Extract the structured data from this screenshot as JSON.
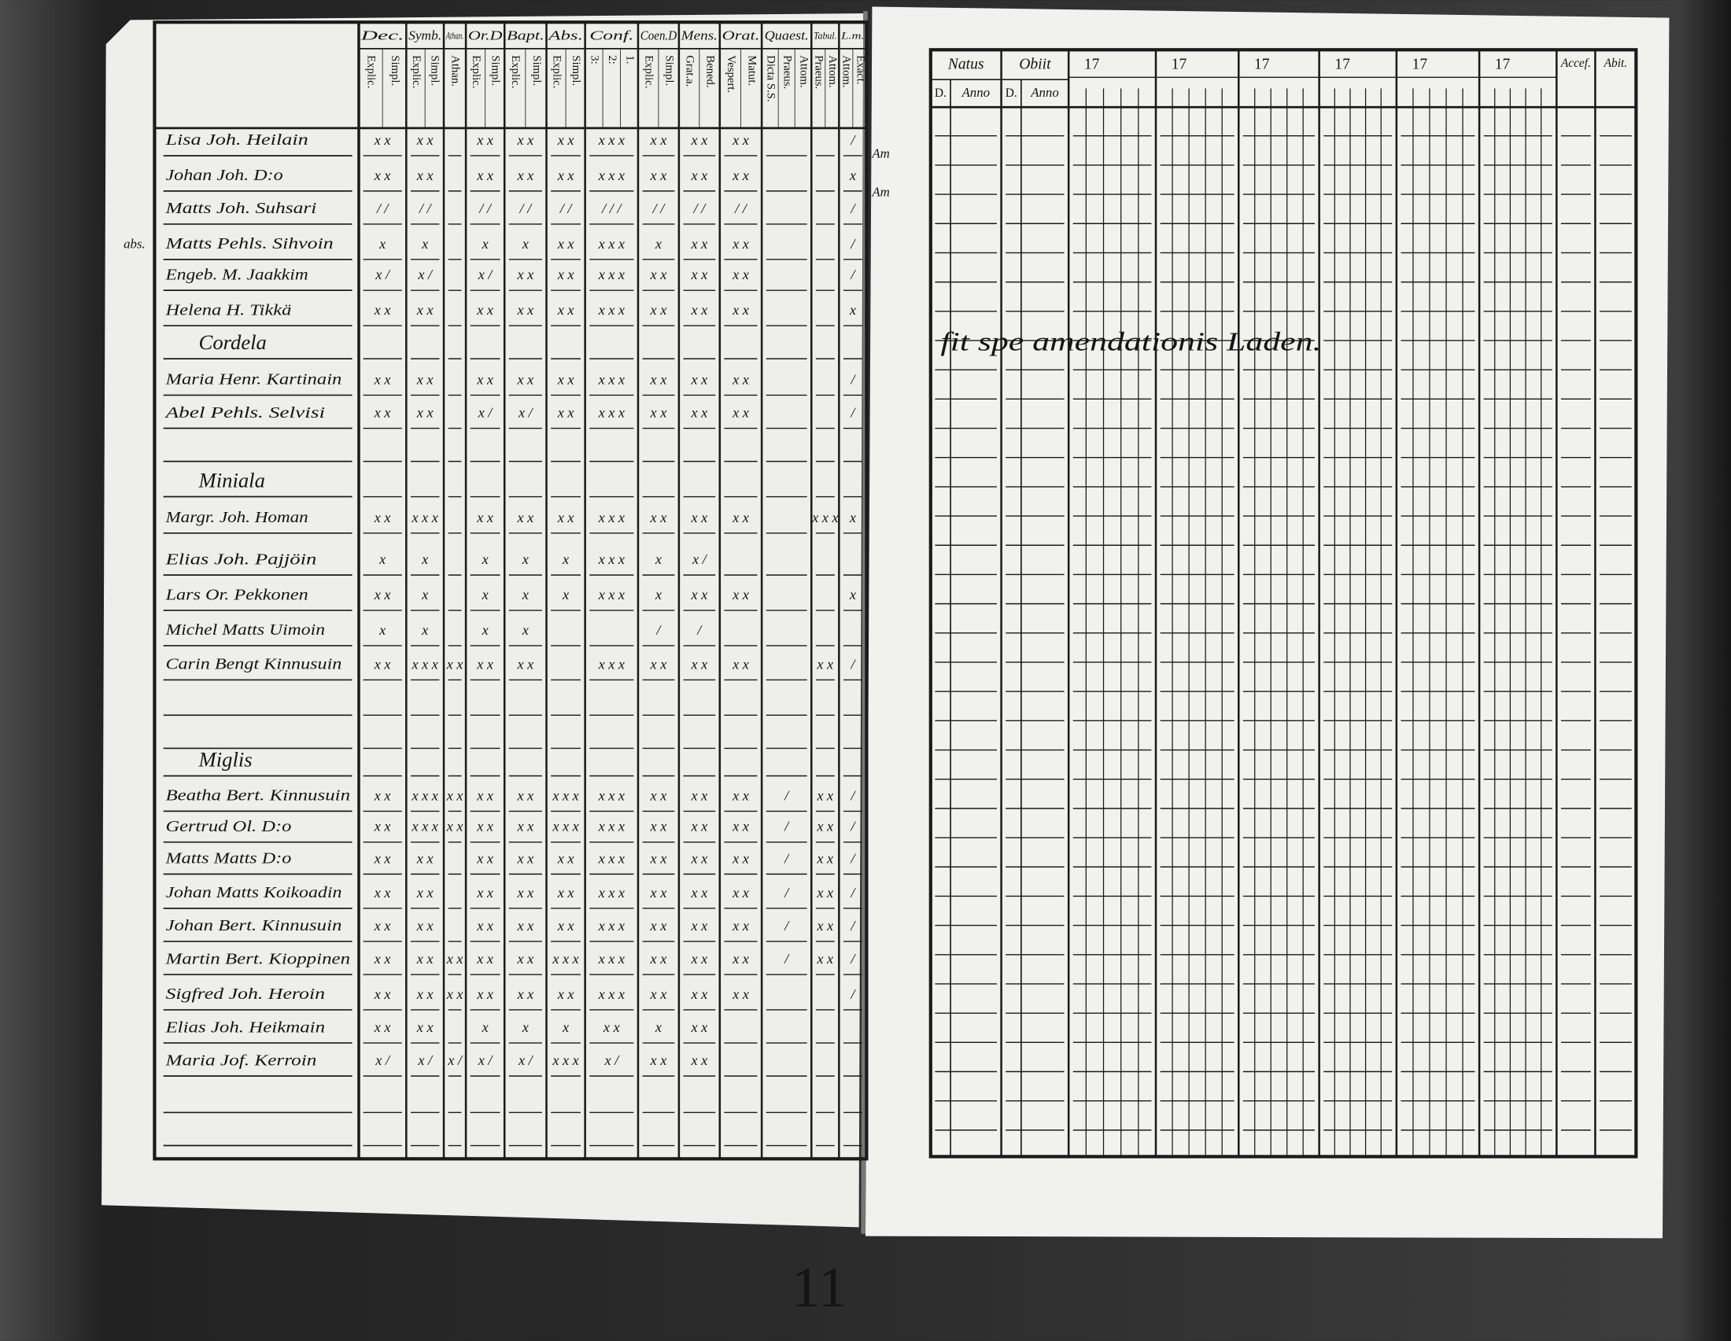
{
  "left": {
    "columns": [
      {
        "top": "Dec.",
        "sub": [
          "Explic.",
          "Simpl."
        ]
      },
      {
        "top": "Symb.",
        "sub": [
          "Explic.",
          "Simpl."
        ]
      },
      {
        "top": "Athan.",
        "sub": [
          "Athan."
        ]
      },
      {
        "top": "Or.D",
        "sub": [
          "Explic.",
          "Simpl."
        ]
      },
      {
        "top": "Bapt.",
        "sub": [
          "Explic.",
          "Simpl."
        ]
      },
      {
        "top": "Abs.",
        "sub": [
          "Explic.",
          "Simpl."
        ]
      },
      {
        "top": "Conf.",
        "sub": [
          "3:",
          "2:",
          "1."
        ]
      },
      {
        "top": "Coen.D",
        "sub": [
          "Explic.",
          "Simpl."
        ]
      },
      {
        "top": "Mens.",
        "sub": [
          "Grat.a.",
          "Bened."
        ]
      },
      {
        "top": "Orat.",
        "sub": [
          "Vespert.",
          "Matut."
        ]
      },
      {
        "top": "Quaest.",
        "sub": [
          "Dicta S.S.",
          "Praeus.",
          "Attom."
        ]
      },
      {
        "top": "Tabul.",
        "sub": [
          "Praeus.",
          "Attom."
        ]
      },
      {
        "top": "L.m.",
        "sub": [
          "Attom.",
          "Exact."
        ]
      }
    ],
    "rows": [
      {
        "name": "Lisa Joh. Heilain",
        "marks": [
          "x x",
          "x x",
          null,
          "x x",
          "x x",
          "x x",
          "x x x",
          "x x",
          "x x",
          "x x",
          null,
          null,
          "/"
        ]
      },
      {
        "name": "Johan Joh. D:o",
        "marks": [
          "x x",
          "x x",
          null,
          "x x",
          "x x",
          "x x",
          "x x x",
          "x x",
          "x x",
          "x x",
          null,
          null,
          "x"
        ]
      },
      {
        "name": "Matts Joh. Suhsari",
        "marks": [
          "/ /",
          "/ /",
          null,
          "/ /",
          "/ /",
          "/ /",
          "/ / /",
          "/ /",
          "/ /",
          "/ /",
          null,
          null,
          "/"
        ]
      },
      {
        "name": "Matts Pehls. Sihvoin",
        "marks": [
          "x",
          "x",
          null,
          "x",
          "x",
          "x x",
          "x x x",
          "x",
          "x x",
          "x x",
          null,
          null,
          "/"
        ]
      },
      {
        "name": "Engeb. M. Jaakkim",
        "marks": [
          "x /",
          "x /",
          null,
          "x /",
          "x x",
          "x x",
          "x x x",
          "x x",
          "x x",
          "x x",
          null,
          null,
          "/"
        ]
      },
      {
        "name": "Helena H. Tikkä",
        "marks": [
          "x x",
          "x x",
          null,
          "x x",
          "x x",
          "x x",
          "x x x",
          "x x",
          "x x",
          "x x",
          null,
          null,
          "x"
        ]
      },
      {
        "heading": "Cordela"
      },
      {
        "name": "Maria Henr. Kartinain",
        "marks": [
          "x x",
          "x x",
          null,
          "x x",
          "x x",
          "x x",
          "x x x",
          "x x",
          "x x",
          "x x",
          null,
          null,
          "/"
        ]
      },
      {
        "name": "Abel Pehls. Selvisi",
        "marks": [
          "x x",
          "x x",
          null,
          "x /",
          "x /",
          "x x",
          "x x x",
          "x x",
          "x x",
          "x x",
          null,
          null,
          "/"
        ]
      },
      {
        "heading": "Miniala"
      },
      {
        "name": "Margr. Joh. Homan",
        "marks": [
          "x x",
          "x x x",
          null,
          "x x",
          "x x",
          "x x",
          "x x x",
          "x x",
          "x x",
          "x x",
          null,
          "x x x",
          "x"
        ]
      },
      {
        "name": "Elias Joh. Pajjöin",
        "marks": [
          "x",
          "x",
          null,
          "x",
          "x",
          "x",
          "x x x",
          "x",
          "x /",
          null,
          null,
          null,
          null
        ]
      },
      {
        "name": "Lars Or. Pekkonen",
        "marks": [
          "x x",
          "x",
          null,
          "x",
          "x",
          "x",
          "x x x",
          "x",
          "x x",
          "x x",
          null,
          null,
          "x"
        ]
      },
      {
        "name": "Michel Matts Uimoin",
        "marks": [
          "x",
          "x",
          null,
          "x",
          "x",
          null,
          null,
          "/",
          "/",
          null,
          null,
          null,
          null
        ]
      },
      {
        "name": "Carin Bengt Kinnusuin",
        "marks": [
          "x x",
          "x x x",
          "x x",
          "x x",
          "x x",
          null,
          "x x x",
          "x x",
          "x x",
          "x x",
          null,
          "x x",
          "/"
        ]
      },
      {
        "heading": "Miglis"
      },
      {
        "name": "Beatha Bert. Kinnusuin",
        "marks": [
          "x x",
          "x x x",
          "x x",
          "x x",
          "x x",
          "x x x",
          "x x x",
          "x x",
          "x x",
          "x x",
          "/",
          "x x",
          "/"
        ]
      },
      {
        "name": "Gertrud Ol. D:o",
        "marks": [
          "x x",
          "x x x",
          "x x",
          "x x",
          "x x",
          "x x x",
          "x x x",
          "x x",
          "x x",
          "x x",
          "/",
          "x x",
          "/"
        ]
      },
      {
        "name": "Matts Matts D:o",
        "marks": [
          "x x",
          "x x",
          null,
          "x x",
          "x x",
          "x x",
          "x x x",
          "x x",
          "x x",
          "x x",
          "/",
          "x x",
          "/"
        ]
      },
      {
        "name": "Johan Matts Koikoadin",
        "marks": [
          "x x",
          "x x",
          null,
          "x x",
          "x x",
          "x x",
          "x x x",
          "x x",
          "x x",
          "x x",
          "/",
          "x x",
          "/"
        ]
      },
      {
        "name": "Johan Bert. Kinnusuin",
        "marks": [
          "x x",
          "x x",
          null,
          "x x",
          "x x",
          "x x",
          "x x x",
          "x x",
          "x x",
          "x x",
          "/",
          "x x",
          "/"
        ]
      },
      {
        "name": "Martin Bert. Kioppinen",
        "marks": [
          "x x",
          "x x",
          "x x",
          "x x",
          "x x",
          "x x x",
          "x x x",
          "x x",
          "x x",
          "x x",
          "/",
          "x x",
          "/"
        ]
      },
      {
        "name": "Sigfred Joh. Heroin",
        "marks": [
          "x x",
          "x x",
          "x x",
          "x x",
          "x x",
          "x x",
          "x x x",
          "x x",
          "x x",
          "x x",
          null,
          null,
          "/"
        ]
      },
      {
        "name": "Elias Joh. Heikmain",
        "marks": [
          "x x",
          "x x",
          null,
          "x",
          "x",
          "x",
          "x x",
          "x",
          "x x",
          null,
          null,
          null,
          null
        ]
      },
      {
        "name": "Maria Jof. Kerroin",
        "marks": [
          "x /",
          "x /",
          "x /",
          "x /",
          "x /",
          "x x x",
          "x /",
          "x x",
          "x x",
          null,
          null,
          null,
          null
        ]
      }
    ],
    "margin_notes": [
      "abs.",
      "Am",
      "Am"
    ]
  },
  "right": {
    "columns": [
      {
        "top": "Natus",
        "sub": [
          "D.",
          "Anno"
        ]
      },
      {
        "top": "Obiit",
        "sub": [
          "D.",
          "Anno"
        ]
      },
      {
        "top": "17"
      },
      {
        "top": "17"
      },
      {
        "top": "17"
      },
      {
        "top": "17"
      },
      {
        "top": "17"
      },
      {
        "top": "17"
      },
      {
        "top": "Accef."
      },
      {
        "top": "Abit."
      }
    ],
    "annotation": "fit spe amendationis Laden."
  },
  "film_mark": "11"
}
